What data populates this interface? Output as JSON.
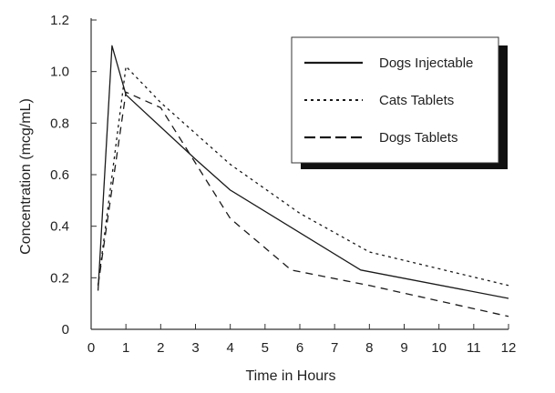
{
  "chart_data": {
    "type": "line",
    "xlabel": "Time in Hours",
    "ylabel": "Concentration (mcg/mL)",
    "xlim": [
      0,
      12
    ],
    "ylim": [
      0,
      1.2
    ],
    "x_ticks": [
      "0",
      "1",
      "2",
      "3",
      "4",
      "5",
      "6",
      "7",
      "8",
      "9",
      "10",
      "11",
      "12"
    ],
    "y_ticks": [
      "0",
      "0.2",
      "0.4",
      "0.6",
      "0.8",
      "1.0",
      "1.2"
    ],
    "grid": false,
    "legend_position": "top-right",
    "series": [
      {
        "name": "Dogs Injectable",
        "style": "solid",
        "x": [
          0.2,
          0.6,
          1.0,
          3.0,
          4.0,
          7.75,
          12.0
        ],
        "y": [
          0.15,
          1.1,
          0.91,
          0.66,
          0.54,
          0.23,
          0.12
        ]
      },
      {
        "name": "Cats Tablets",
        "style": "dotted",
        "x": [
          0.2,
          1.0,
          2.0,
          4.0,
          6.0,
          8.0,
          12.0
        ],
        "y": [
          0.17,
          1.02,
          0.88,
          0.64,
          0.45,
          0.3,
          0.17
        ]
      },
      {
        "name": "Dogs Tablets",
        "style": "dashed",
        "x": [
          0.2,
          1.0,
          2.0,
          4.0,
          5.75,
          8.0,
          12.0
        ],
        "y": [
          0.17,
          0.92,
          0.86,
          0.43,
          0.23,
          0.17,
          0.05
        ]
      }
    ]
  }
}
